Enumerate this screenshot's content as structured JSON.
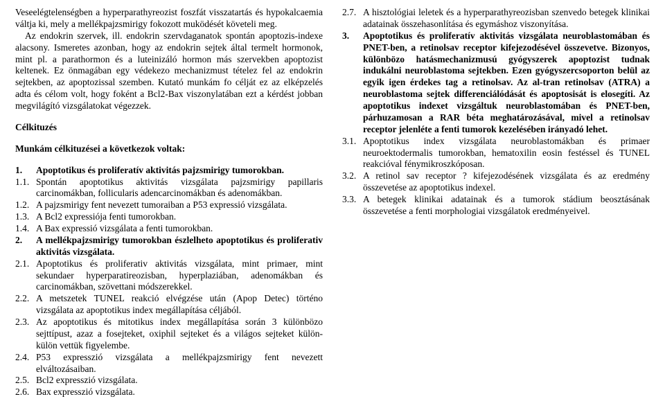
{
  "col1": {
    "intro": "Veseelégtelenségben a hyperparathyreozist foszfát visszatartás és hypokalcaemia váltja ki, mely a mellékpajzsmirigy fokozott muködését követeli meg.",
    "intro2": "Az endokrin szervek, ill. endokrin szervdaganatok spontán apoptozis-indexe alacsony. Ismeretes azonban, hogy az endokrin sejtek által termelt hormonok, mint pl. a parathormon és a luteinizáló hormon más szervekben apoptozist keltenek. Ez önmagában egy védekezo mechanizmust tételez fel az endokrin sejtekben, az apoptozissal szemben. Kutató munkám fo célját ez az elképzelés adta és célom volt, hogy foként a Bcl2-Bax viszonylatában ezt a kérdést jobban megvilágító vizsgálatokat végezzek.",
    "h1": "Célkituzés",
    "h2": "Munkám célkituzései a következok voltak:",
    "s1": {
      "num": "1.",
      "txt": "Apoptotikus és proliferatív aktivitás pajzsmirigy tumorokban."
    },
    "i11": {
      "num": "1.1.",
      "txt": "Spontán apoptotikus aktivitás vizsgálata pajzsmirigy papillaris carcinomákban, follicularis adencarcinomákban és adenomákban."
    },
    "i12": {
      "num": "1.2.",
      "txt": "A pajzsmirigy fent nevezett tumoraiban a P53 expressió vizsgálata."
    },
    "i13": {
      "num": "1.3.",
      "txt": "A Bcl2 expressiója fenti tumorokban."
    },
    "i14": {
      "num": "1.4.",
      "txt": "A Bax expressió vizsgálata a fenti tumorokban."
    },
    "s2": {
      "num": "2.",
      "txt": "A mellékpajzsmirigy tumorokban észlelheto apoptotikus és proliferativ aktivitás vizsgálata."
    },
    "i21": {
      "num": "2.1.",
      "txt": "Apoptotikus és proliferativ aktivitás vizsgálata, mint primaer, mint sekundaer hyperparatireozisban, hyperplaziában, adenomákban és carcinomákban, szövettani módszerekkel."
    },
    "i22": {
      "num": "2.2.",
      "txt": "A metszetek TUNEL reakció elvégzése után (Apop Detec) történo vizsgálata az apoptotikus index megállapítása céljából."
    }
  },
  "col2": {
    "i23": {
      "num": "2.3.",
      "txt": "Az apoptotikus és mitotikus index megállapítása során 3 különbözo sejttípust, azaz a fosejteket, oxiphil sejteket és a világos sejteket külön-külön vettük figyelembe."
    },
    "i24": {
      "num": "2.4.",
      "txt": "P53 expresszió vizsgálata a mellékpajzsmirigy fent nevezett elváltozásaiban."
    },
    "i25": {
      "num": "2.5.",
      "txt": "Bcl2 expresszió vizsgálata."
    },
    "i26": {
      "num": "2.6.",
      "txt": "Bax expresszió vizsgálata."
    },
    "i27": {
      "num": "2.7.",
      "txt": "A hisztológiai leletek és a hyperparathyreozisban szenvedo betegek klinikai adatainak összehasonlítása és egymáshoz viszonyítása."
    },
    "s3": {
      "num": "3.",
      "txt": "Apoptotikus és proliferatív aktivitás vizsgálata neuroblastomában és PNET-ben, a retinolsav receptor kifejezodésével összevetve. Bizonyos, különbözo hatásmechanizmusú gyógyszerek apoptozist tudnak indukálni neuroblastoma sejtekben. Ezen gyógyszercsoporton belül az egyik igen érdekes tag a retinolsav. Az al-tran retinolsav (ATRA) a neuroblastoma sejtek differenciálódását és apoptosisát is elosegíti. Az apoptotikus indexet vizsgáltuk neuroblastomában és PNET-ben, párhuzamosan a RAR béta meghatározásával, mivel a retinolsav receptor jelenléte a fenti tumorok kezelésében irányadó lehet."
    },
    "i31": {
      "num": "3.1.",
      "txt": "Apoptotikus index vizsgálata neuroblastomákban és primaer neuroektodermalis tumorokban, hematoxilin eosin festéssel és TUNEL reakcióval fénymikroszkóposan."
    },
    "i32": {
      "num": "3.2.",
      "txt": "A retinol sav receptor ? kifejezodésének vizsgálata és az eredmény összevetése az apoptotikus indexel."
    },
    "i33": {
      "num": "3.3.",
      "txt": "A betegek klinikai adatainak és a tumorok stádium beosztásának összevetése a fenti morphologiai vizsgálatok eredményeivel."
    }
  }
}
